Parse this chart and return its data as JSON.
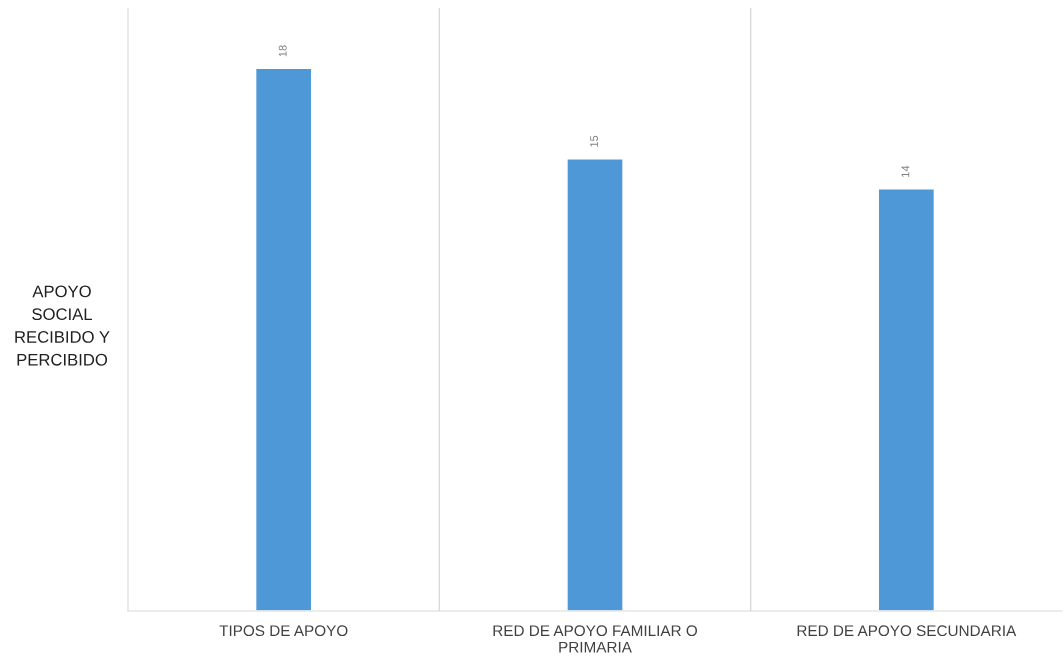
{
  "chart_data": {
    "type": "bar",
    "ylabel": "APOYO\nSOCIAL\nRECIBIDO Y\nPERCIBIDO",
    "categories": [
      "TIPOS DE APOYO",
      "RED DE APOYO FAMILIAR O\nPRIMARIA",
      "RED DE APOYO SECUNDARIA"
    ],
    "values": [
      18,
      15,
      14
    ],
    "color": "#4e98d8",
    "ylim": [
      0,
      20
    ],
    "data_labels": true,
    "grid": "x",
    "tick_labels": "x"
  }
}
